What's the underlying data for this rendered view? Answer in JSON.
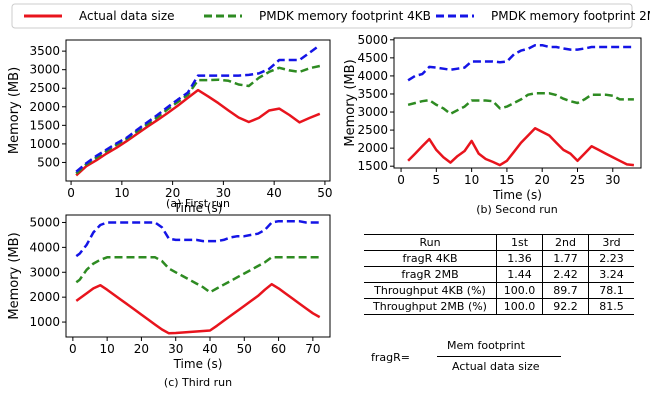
{
  "legend": {
    "items": [
      {
        "label": "Actual data size",
        "color": "#e8141d",
        "dash": "solid"
      },
      {
        "label": "PMDK memory footprint 4KB",
        "color": "#2e8b22",
        "dash": "dashed"
      },
      {
        "label": "PMDK memory footprint 2MB",
        "color": "#1414e6",
        "dash": "dashed"
      }
    ]
  },
  "chart_data": [
    {
      "type": "line",
      "caption": "(a) First run",
      "xlabel": "Time (s)",
      "ylabel": "Memory (MB)",
      "xlim": [
        -1,
        51
      ],
      "ylim": [
        0,
        3800
      ],
      "xticks": [
        0,
        10,
        20,
        30,
        40,
        50
      ],
      "yticks": [
        500,
        1000,
        1500,
        2000,
        2500,
        3000,
        3500
      ],
      "series": [
        {
          "name": "Actual data size",
          "x": [
            1,
            3,
            5,
            7,
            9,
            11,
            13,
            15,
            17,
            19,
            21,
            23,
            25,
            27,
            29,
            31,
            33,
            35,
            37,
            39,
            41,
            43,
            45,
            47,
            49
          ],
          "y": [
            150,
            400,
            560,
            740,
            900,
            1080,
            1270,
            1460,
            1640,
            1830,
            2030,
            2240,
            2450,
            2280,
            2100,
            1900,
            1710,
            1590,
            1700,
            1900,
            1950,
            1780,
            1580,
            1700,
            1810
          ]
        },
        {
          "name": "PMDK memory footprint 4KB",
          "x": [
            1,
            3,
            5,
            7,
            9,
            11,
            13,
            15,
            17,
            19,
            21,
            23,
            25,
            27,
            29,
            31,
            33,
            35,
            37,
            39,
            41,
            43,
            45,
            47,
            49
          ],
          "y": [
            200,
            450,
            630,
            810,
            980,
            1140,
            1340,
            1530,
            1720,
            1930,
            2130,
            2320,
            2720,
            2720,
            2730,
            2700,
            2600,
            2560,
            2780,
            2940,
            3050,
            2980,
            2940,
            3040,
            3100
          ]
        },
        {
          "name": "PMDK memory footprint 2MB",
          "x": [
            1,
            3,
            5,
            7,
            9,
            11,
            13,
            15,
            17,
            19,
            21,
            23,
            25,
            27,
            29,
            31,
            33,
            35,
            37,
            39,
            41,
            43,
            45,
            47,
            49
          ],
          "y": [
            250,
            480,
            680,
            850,
            1020,
            1170,
            1380,
            1580,
            1780,
            1990,
            2190,
            2380,
            2840,
            2840,
            2840,
            2840,
            2840,
            2860,
            2900,
            3020,
            3260,
            3260,
            3260,
            3460,
            3660
          ]
        }
      ]
    },
    {
      "type": "line",
      "caption": "(b) Second run",
      "xlabel": "Time (s)",
      "ylabel": "Memory (MB)",
      "xlim": [
        -1,
        34
      ],
      "ylim": [
        1450,
        5050
      ],
      "xticks": [
        0,
        5,
        10,
        15,
        20,
        25,
        30
      ],
      "yticks": [
        1500,
        2000,
        2500,
        3000,
        3500,
        4000,
        4500,
        5000
      ],
      "series": [
        {
          "name": "Actual data size",
          "x": [
            1,
            2,
            3,
            4,
            5,
            6,
            7,
            8,
            9,
            10,
            11,
            12,
            13,
            14,
            15,
            16,
            17,
            18,
            19,
            20,
            21,
            22,
            23,
            24,
            25,
            26,
            27,
            28,
            29,
            30,
            31,
            32,
            33
          ],
          "y": [
            1650,
            1850,
            2050,
            2250,
            1950,
            1750,
            1600,
            1780,
            1920,
            2200,
            1850,
            1700,
            1620,
            1530,
            1650,
            1900,
            2150,
            2350,
            2550,
            2450,
            2350,
            2150,
            1950,
            1850,
            1650,
            1850,
            2050,
            1950,
            1850,
            1750,
            1650,
            1550,
            1530
          ]
        },
        {
          "name": "PMDK memory footprint 4KB",
          "x": [
            1,
            2,
            3,
            4,
            5,
            6,
            7,
            8,
            9,
            10,
            11,
            12,
            13,
            14,
            15,
            16,
            17,
            18,
            19,
            20,
            21,
            22,
            23,
            24,
            25,
            26,
            27,
            28,
            29,
            30,
            31,
            32,
            33
          ],
          "y": [
            3200,
            3250,
            3300,
            3330,
            3200,
            3100,
            2950,
            3050,
            3150,
            3320,
            3320,
            3320,
            3300,
            3100,
            3150,
            3250,
            3350,
            3480,
            3520,
            3520,
            3520,
            3470,
            3370,
            3300,
            3250,
            3350,
            3480,
            3480,
            3480,
            3450,
            3350,
            3350,
            3350
          ]
        },
        {
          "name": "PMDK memory footprint 2MB",
          "x": [
            1,
            2,
            3,
            4,
            5,
            6,
            7,
            8,
            9,
            10,
            11,
            12,
            13,
            14,
            15,
            16,
            17,
            18,
            19,
            20,
            21,
            22,
            23,
            24,
            25,
            26,
            27,
            28,
            29,
            30,
            31,
            32,
            33
          ],
          "y": [
            3880,
            4000,
            4050,
            4250,
            4230,
            4200,
            4170,
            4200,
            4230,
            4400,
            4400,
            4400,
            4400,
            4380,
            4400,
            4600,
            4700,
            4750,
            4850,
            4850,
            4800,
            4800,
            4760,
            4730,
            4730,
            4760,
            4800,
            4800,
            4800,
            4800,
            4800,
            4800,
            4800
          ]
        }
      ]
    },
    {
      "type": "line",
      "caption": "(c) Third run",
      "xlabel": "Time (s)",
      "ylabel": "Memory (MB)",
      "xlim": [
        -2,
        75
      ],
      "ylim": [
        400,
        5300
      ],
      "xticks": [
        0,
        10,
        20,
        30,
        40,
        50,
        60,
        70
      ],
      "yticks": [
        1000,
        2000,
        3000,
        4000,
        5000
      ],
      "series": [
        {
          "name": "Actual data size",
          "x": [
            1,
            2,
            4,
            6,
            8,
            10,
            12,
            14,
            16,
            18,
            20,
            22,
            24,
            26,
            28,
            30,
            32,
            34,
            36,
            38,
            40,
            42,
            44,
            46,
            48,
            50,
            52,
            54,
            56,
            58,
            60,
            62,
            64,
            66,
            68,
            70,
            72
          ],
          "y": [
            1850,
            1950,
            2150,
            2350,
            2480,
            2300,
            2100,
            1900,
            1700,
            1500,
            1300,
            1100,
            900,
            700,
            550,
            560,
            580,
            600,
            620,
            640,
            660,
            850,
            1050,
            1250,
            1450,
            1650,
            1850,
            2050,
            2300,
            2520,
            2350,
            2150,
            1950,
            1750,
            1550,
            1350,
            1200
          ]
        },
        {
          "name": "PMDK memory footprint 4KB",
          "x": [
            1,
            2,
            4,
            6,
            8,
            10,
            12,
            14,
            16,
            18,
            20,
            22,
            24,
            26,
            28,
            30,
            32,
            34,
            36,
            38,
            40,
            42,
            44,
            46,
            48,
            50,
            52,
            54,
            56,
            58,
            60,
            62,
            64,
            66,
            68,
            70,
            72
          ],
          "y": [
            2600,
            2700,
            3100,
            3350,
            3500,
            3600,
            3600,
            3600,
            3600,
            3600,
            3600,
            3600,
            3600,
            3450,
            3150,
            3000,
            2850,
            2700,
            2550,
            2400,
            2200,
            2350,
            2500,
            2650,
            2800,
            2950,
            3100,
            3250,
            3400,
            3600,
            3600,
            3600,
            3600,
            3600,
            3600,
            3600,
            3600
          ]
        },
        {
          "name": "PMDK memory footprint 2MB",
          "x": [
            1,
            2,
            4,
            6,
            8,
            10,
            12,
            14,
            16,
            18,
            20,
            22,
            24,
            26,
            28,
            30,
            32,
            34,
            36,
            38,
            40,
            42,
            44,
            46,
            48,
            50,
            52,
            54,
            56,
            58,
            60,
            62,
            64,
            66,
            68,
            70,
            72
          ],
          "y": [
            3650,
            3750,
            4100,
            4600,
            4900,
            5000,
            5000,
            5000,
            5000,
            5000,
            5000,
            5000,
            5000,
            4800,
            4350,
            4300,
            4300,
            4300,
            4300,
            4250,
            4250,
            4250,
            4300,
            4400,
            4450,
            4450,
            4500,
            4550,
            4700,
            5000,
            5050,
            5050,
            5050,
            5050,
            5000,
            5000,
            5000
          ]
        }
      ]
    }
  ],
  "table": {
    "headers": [
      "Run",
      "1st",
      "2nd",
      "3rd"
    ],
    "rows": [
      [
        "fragR 4KB",
        "1.36",
        "1.77",
        "2.23"
      ],
      [
        "fragR 2MB",
        "1.44",
        "2.42",
        "3.24"
      ],
      [
        "Throughput 4KB (%)",
        "100.0",
        "89.7",
        "78.1"
      ],
      [
        "Throughput 2MB (%)",
        "100.0",
        "92.2",
        "81.5"
      ]
    ]
  },
  "formula": {
    "lhs": "fragR=",
    "numerator": "Mem footprint",
    "denominator": "Actual data size"
  }
}
